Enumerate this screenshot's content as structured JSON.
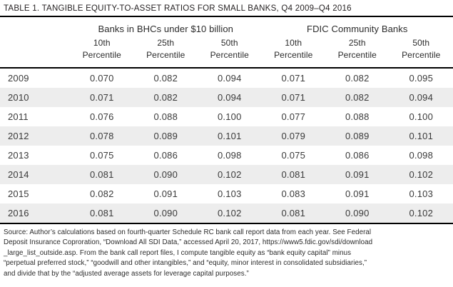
{
  "title": "TABLE 1. TANGIBLE EQUITY-TO-ASSET RATIOS FOR SMALL BANKS, Q4 2009–Q4 2016",
  "header": {
    "group1": "Banks in BHCs under $10 billion",
    "group2": "FDIC Community Banks",
    "percentiles": [
      "10th",
      "25th",
      "50th"
    ],
    "percentile_word": "Percentile"
  },
  "table": {
    "rows": [
      {
        "year": "2009",
        "bhc": [
          "0.070",
          "0.082",
          "0.094"
        ],
        "fdic": [
          "0.071",
          "0.082",
          "0.095"
        ]
      },
      {
        "year": "2010",
        "bhc": [
          "0.071",
          "0.082",
          "0.094"
        ],
        "fdic": [
          "0.071",
          "0.082",
          "0.094"
        ]
      },
      {
        "year": "2011",
        "bhc": [
          "0.076",
          "0.088",
          "0.100"
        ],
        "fdic": [
          "0.077",
          "0.088",
          "0.100"
        ]
      },
      {
        "year": "2012",
        "bhc": [
          "0.078",
          "0.089",
          "0.101"
        ],
        "fdic": [
          "0.079",
          "0.089",
          "0.101"
        ]
      },
      {
        "year": "2013",
        "bhc": [
          "0.075",
          "0.086",
          "0.098"
        ],
        "fdic": [
          "0.075",
          "0.086",
          "0.098"
        ]
      },
      {
        "year": "2014",
        "bhc": [
          "0.081",
          "0.090",
          "0.102"
        ],
        "fdic": [
          "0.081",
          "0.091",
          "0.102"
        ]
      },
      {
        "year": "2015",
        "bhc": [
          "0.082",
          "0.091",
          "0.103"
        ],
        "fdic": [
          "0.083",
          "0.091",
          "0.103"
        ]
      },
      {
        "year": "2016",
        "bhc": [
          "0.081",
          "0.090",
          "0.102"
        ],
        "fdic": [
          "0.081",
          "0.090",
          "0.102"
        ]
      }
    ]
  },
  "source_lines": [
    "Source: Author’s calculations based on fourth-quarter Schedule RC bank call report data from each year. See Federal",
    "Deposit Insurance Coproration, “Download All SDI Data,” accessed April 20, 2017, https://www5.fdic.gov/sdi/download",
    "_large_list_outside.asp. From the bank call report files, I compute tangible equity as “bank equity capital” minus",
    "“perpetual preferred stock,” “goodwill and other intangibles,” and “equity, minor interest in consolidated subsidiaries,”",
    "and divide that by the “adjusted average assets for leverage capital purposes.”"
  ],
  "colors": {
    "stripe": "#ededed",
    "rule": "#000000",
    "title_text": "#231f20",
    "body_text": "#3a3a3a"
  }
}
